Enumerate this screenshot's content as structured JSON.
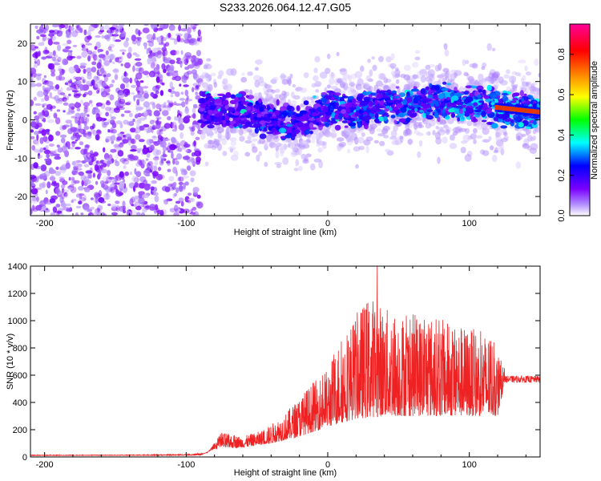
{
  "title": "S233.2026.064.12.47.G05",
  "chart_data": [
    {
      "type": "heatmap",
      "name": "spectrogram",
      "xlabel": "Height of straight line (km)",
      "ylabel": "Frequency (Hz)",
      "xlim": [
        -210,
        150
      ],
      "ylim": [
        -25,
        25
      ],
      "xticks": [
        -200,
        -100,
        0,
        100
      ],
      "yticks": [
        -20,
        -10,
        0,
        10,
        20
      ],
      "colorbar": {
        "label": "Normalized spectral amplitude",
        "range": [
          0,
          0.95
        ],
        "ticks": [
          "0.0",
          "0.2",
          "0.4",
          "0.6",
          "0.8"
        ],
        "tick_values": [
          0,
          0.2,
          0.4,
          0.6,
          0.8
        ],
        "colormap": [
          "#ffffff",
          "#7b00ff",
          "#0000ff",
          "#00ffff",
          "#00ff00",
          "#ffff00",
          "#ff8000",
          "#ff0000",
          "#ff00ff"
        ]
      },
      "signal_band": {
        "noise_region_x": [
          -210,
          -90
        ],
        "signal_region_x": [
          -90,
          150
        ],
        "center_freq_hz": [
          [
            -90,
            3
          ],
          [
            -80,
            2
          ],
          [
            -60,
            2
          ],
          [
            -40,
            0
          ],
          [
            -20,
            -1
          ],
          [
            0,
            3
          ],
          [
            20,
            2
          ],
          [
            40,
            4
          ],
          [
            60,
            4
          ],
          [
            80,
            5
          ],
          [
            100,
            4
          ],
          [
            125,
            3
          ],
          [
            150,
            2
          ]
        ],
        "band_halfwidth_hz": 5
      }
    },
    {
      "type": "line",
      "name": "snr",
      "xlabel": "Height of straight line (km)",
      "ylabel": "SNR (10 * v/v)",
      "xlim": [
        -210,
        150
      ],
      "ylim": [
        0,
        1400
      ],
      "xticks": [
        -200,
        -100,
        0,
        100
      ],
      "yticks": [
        0,
        200,
        400,
        600,
        800,
        1000,
        1200,
        1400
      ],
      "color": "#ee2222",
      "envelope": [
        [
          -210,
          15
        ],
        [
          -150,
          15
        ],
        [
          -100,
          20
        ],
        [
          -85,
          30
        ],
        [
          -75,
          180
        ],
        [
          -60,
          150
        ],
        [
          -45,
          200
        ],
        [
          -30,
          320
        ],
        [
          -15,
          500
        ],
        [
          0,
          650
        ],
        [
          10,
          900
        ],
        [
          20,
          1050
        ],
        [
          30,
          1200
        ],
        [
          40,
          1100
        ],
        [
          55,
          1050
        ],
        [
          70,
          1050
        ],
        [
          85,
          1000
        ],
        [
          100,
          950
        ],
        [
          115,
          900
        ],
        [
          125,
          650
        ],
        [
          150,
          590
        ]
      ],
      "baseline": [
        [
          -210,
          10
        ],
        [
          -90,
          12
        ],
        [
          -80,
          60
        ],
        [
          -60,
          70
        ],
        [
          -40,
          100
        ],
        [
          -20,
          150
        ],
        [
          0,
          220
        ],
        [
          20,
          280
        ],
        [
          40,
          300
        ],
        [
          60,
          300
        ],
        [
          80,
          300
        ],
        [
          100,
          300
        ],
        [
          120,
          300
        ],
        [
          125,
          540
        ],
        [
          150,
          540
        ]
      ],
      "peak_value": 1400,
      "peak_x": 35,
      "tail_level": 570
    }
  ]
}
